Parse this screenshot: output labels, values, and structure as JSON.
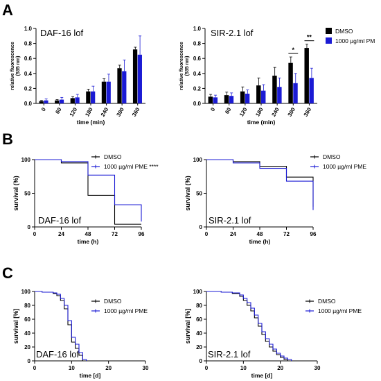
{
  "panel_letters": [
    "A",
    "B",
    "C"
  ],
  "colors": {
    "dmso": "#000000",
    "pme": "#1b1bd4"
  },
  "chart_data": [
    {
      "type": "bar",
      "panel": "A",
      "title": "DAF-16 lof",
      "xlabel": "time (min)",
      "ylabel": [
        "relative fluorescence",
        "(535 nm)"
      ],
      "categories": [
        "0",
        "60",
        "120",
        "180",
        "240",
        "300",
        "360"
      ],
      "ylim": [
        0,
        1.0
      ],
      "yticks": [
        "0.0",
        "0.2",
        "0.4",
        "0.6",
        "0.8",
        "1.0"
      ],
      "series": [
        {
          "name": "DMSO",
          "values": [
            0.03,
            0.04,
            0.07,
            0.16,
            0.29,
            0.47,
            0.72
          ],
          "errors": [
            0.01,
            0.01,
            0.02,
            0.03,
            0.04,
            0.04,
            0.03
          ]
        },
        {
          "name": "1000 µg/ml PM",
          "values": [
            0.04,
            0.05,
            0.08,
            0.16,
            0.29,
            0.43,
            0.65
          ],
          "errors": [
            0.02,
            0.03,
            0.04,
            0.07,
            0.1,
            0.15,
            0.25
          ]
        }
      ],
      "significance": []
    },
    {
      "type": "bar",
      "panel": "A",
      "title": "SIR-2.1 lof",
      "xlabel": "time (min)",
      "ylabel": [
        "relative fluorescence",
        "(535 nm)"
      ],
      "categories": [
        "0",
        "60",
        "120",
        "180",
        "240",
        "300",
        "360"
      ],
      "ylim": [
        0,
        1.0
      ],
      "yticks": [
        "0.0",
        "0.2",
        "0.4",
        "0.6",
        "0.8",
        "1.0"
      ],
      "legend": {
        "entries": [
          "DMSO",
          "1000 µg/ml PM"
        ],
        "position": "right"
      },
      "series": [
        {
          "name": "DMSO",
          "values": [
            0.09,
            0.11,
            0.16,
            0.24,
            0.37,
            0.54,
            0.74
          ],
          "errors": [
            0.03,
            0.04,
            0.06,
            0.1,
            0.11,
            0.08,
            0.05
          ]
        },
        {
          "name": "1000 µg/ml PM",
          "values": [
            0.08,
            0.1,
            0.13,
            0.17,
            0.22,
            0.27,
            0.34
          ],
          "errors": [
            0.03,
            0.04,
            0.05,
            0.08,
            0.12,
            0.13,
            0.13
          ]
        }
      ],
      "significance": [
        {
          "category": "300",
          "label": "*"
        },
        {
          "category": "360",
          "label": "**"
        }
      ]
    },
    {
      "type": "line",
      "subtype": "step",
      "panel": "B",
      "title": "DAF-16 lof",
      "xlabel": "time (h)",
      "ylabel": "survival (%)",
      "xlim": [
        0,
        96
      ],
      "ylim": [
        0,
        100
      ],
      "xticks": [
        "0",
        "24",
        "48",
        "72",
        "96"
      ],
      "yticks": [
        "0",
        "50",
        "100"
      ],
      "legend": {
        "entries": [
          "DMSO",
          "1000 µg/ml PME ****"
        ],
        "position": "top-right"
      },
      "series": [
        {
          "name": "DMSO",
          "x": [
            0,
            24,
            48,
            72,
            96
          ],
          "y": [
            100,
            95,
            47,
            4,
            4
          ]
        },
        {
          "name": "1000 µg/ml PME ****",
          "x": [
            0,
            24,
            48,
            72,
            96
          ],
          "y": [
            100,
            97,
            77,
            33,
            8
          ]
        }
      ]
    },
    {
      "type": "line",
      "subtype": "step",
      "panel": "B",
      "title": "SIR-2.1 lof",
      "xlabel": "time (h)",
      "ylabel": "survival (%)",
      "xlim": [
        0,
        96
      ],
      "ylim": [
        0,
        100
      ],
      "xticks": [
        "0",
        "24",
        "48",
        "72",
        "96"
      ],
      "yticks": [
        "0",
        "50",
        "100"
      ],
      "legend": {
        "entries": [
          "DMSO",
          "1000 µg/ml PME"
        ],
        "position": "top-right"
      },
      "series": [
        {
          "name": "DMSO",
          "x": [
            0,
            24,
            48,
            72,
            96
          ],
          "y": [
            100,
            97,
            90,
            74,
            30
          ]
        },
        {
          "name": "1000 µg/ml PME",
          "x": [
            0,
            24,
            48,
            72,
            96
          ],
          "y": [
            100,
            95,
            87,
            68,
            25
          ]
        }
      ]
    },
    {
      "type": "line",
      "subtype": "step",
      "panel": "C",
      "title": "DAF-16 lof",
      "xlabel": "time [d]",
      "ylabel": "survival [%]",
      "xlim": [
        0,
        30
      ],
      "ylim": [
        0,
        100
      ],
      "xticks": [
        "0",
        "10",
        "20",
        "30"
      ],
      "yticks": [
        "0",
        "20",
        "40",
        "60",
        "80",
        "100"
      ],
      "legend": {
        "entries": [
          "DMSO",
          "1000 µg/ml PME"
        ],
        "position": "top-right"
      },
      "series": [
        {
          "name": "DMSO",
          "x": [
            0,
            2,
            5,
            6,
            7,
            8,
            9,
            10,
            11,
            12,
            13,
            14
          ],
          "y": [
            100,
            99,
            97,
            94,
            87,
            75,
            52,
            27,
            18,
            8,
            0,
            0
          ]
        },
        {
          "name": "1000 µg/ml PME",
          "x": [
            0,
            2,
            5,
            6,
            7,
            8,
            9,
            10,
            11,
            12,
            13,
            14
          ],
          "y": [
            100,
            99,
            98,
            96,
            90,
            80,
            58,
            34,
            24,
            12,
            2,
            0
          ]
        }
      ]
    },
    {
      "type": "line",
      "subtype": "step",
      "panel": "C",
      "title": "SIR-2.1 lof",
      "xlabel": "time [d]",
      "ylabel": "survival [%]",
      "xlim": [
        0,
        30
      ],
      "ylim": [
        0,
        100
      ],
      "xticks": [
        "0",
        "10",
        "20",
        "30"
      ],
      "yticks": [
        "0",
        "20",
        "40",
        "60",
        "80",
        "100"
      ],
      "legend": {
        "entries": [
          "DMSO",
          "1000 µg/ml PME"
        ],
        "position": "top-right"
      },
      "series": [
        {
          "name": "DMSO",
          "x": [
            0,
            4,
            7,
            9,
            10,
            11,
            12,
            13,
            14,
            15,
            16,
            17,
            18,
            19,
            20,
            21,
            22
          ],
          "y": [
            100,
            99,
            97,
            93,
            87,
            80,
            72,
            62,
            50,
            38,
            28,
            20,
            14,
            9,
            5,
            2,
            0
          ]
        },
        {
          "name": "1000 µg/ml PME",
          "x": [
            0,
            4,
            7,
            9,
            10,
            11,
            12,
            13,
            14,
            15,
            16,
            17,
            18,
            19,
            20,
            21,
            22,
            23
          ],
          "y": [
            100,
            99,
            98,
            95,
            90,
            84,
            76,
            66,
            54,
            42,
            32,
            24,
            17,
            11,
            7,
            4,
            2,
            0
          ]
        }
      ]
    }
  ]
}
